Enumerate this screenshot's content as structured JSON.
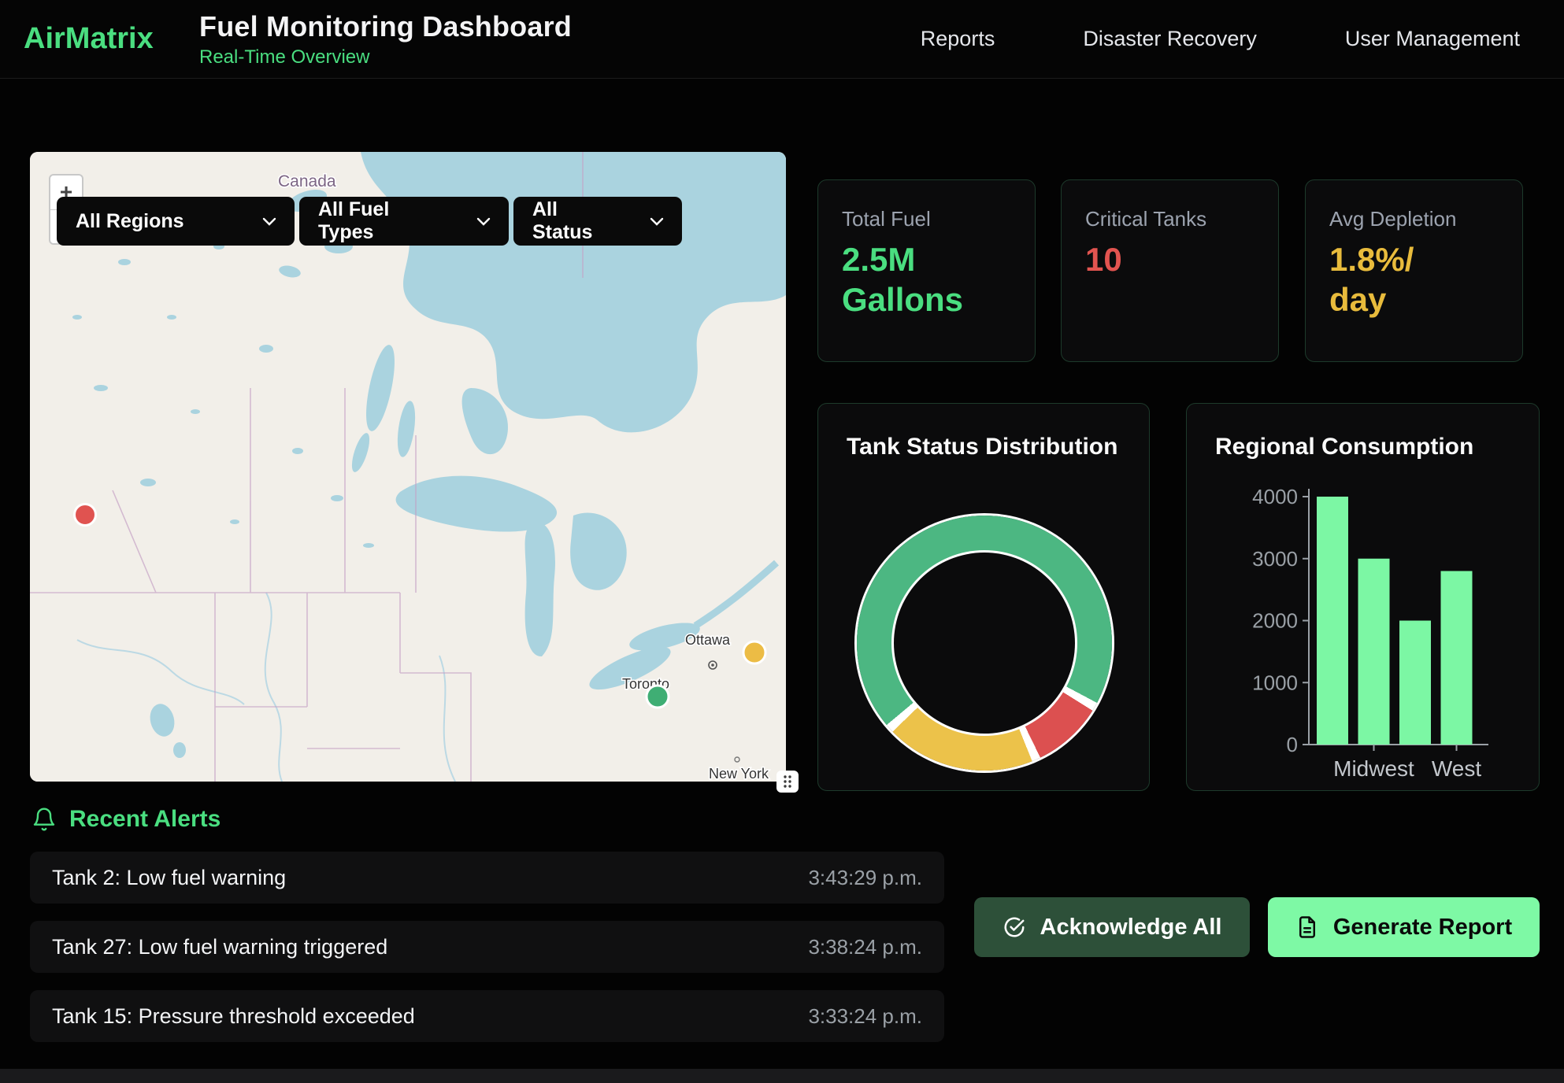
{
  "header": {
    "logo": "AirMatrix",
    "title": "Fuel Monitoring Dashboard",
    "subtitle": "Real-Time Overview",
    "nav": [
      {
        "label": "Reports"
      },
      {
        "label": "Disaster Recovery"
      },
      {
        "label": "User Management"
      }
    ]
  },
  "map": {
    "filters": {
      "region": "All Regions",
      "fuel_type": "All Fuel Types",
      "status": "All Status"
    },
    "zoom_in": "+",
    "zoom_out": "−",
    "labels": {
      "canada": "Canada",
      "ottawa": "Ottawa",
      "toronto": "Toronto",
      "new_york": "New York"
    },
    "markers": [
      {
        "status": "critical",
        "color": "#e05350"
      },
      {
        "status": "warning",
        "color": "#ecbc45"
      },
      {
        "status": "normal",
        "color": "#3fae74"
      }
    ]
  },
  "stats": [
    {
      "label": "Total Fuel",
      "value": "2.5M\nGallons",
      "color": "#4ade80"
    },
    {
      "label": "Critical Tanks",
      "value": "10",
      "color": "#e25450"
    },
    {
      "label": "Avg Depletion",
      "value": "1.8%/\nday",
      "color": "#e8bb3c"
    }
  ],
  "chart_data": [
    {
      "type": "pie",
      "variant": "doughnut",
      "title": "Tank Status Distribution",
      "segments": [
        {
          "label": "green",
          "value": 70,
          "color": "#4cb782"
        },
        {
          "label": "red",
          "value": 10,
          "color": "#dc5050"
        },
        {
          "label": "yellow",
          "value": 20,
          "color": "#ecc24a"
        }
      ],
      "values_estimated": true,
      "rotation_deg": 228,
      "legend": "none"
    },
    {
      "type": "bar",
      "title": "Regional Consumption",
      "categories": [
        "",
        "Midwest",
        "",
        "West"
      ],
      "values": [
        4000,
        3000,
        2000,
        2800
      ],
      "ylim": [
        0,
        4000
      ],
      "yticks": [
        0,
        1000,
        2000,
        3000,
        4000
      ],
      "bar_color": "#7cf7a4",
      "axis_color": "#9aa0a6",
      "tick_label_color": "#9aa0a6",
      "x_label_color": "#c3c7cc",
      "legend": "none",
      "grid": false
    }
  ],
  "alerts": {
    "heading": "Recent Alerts",
    "items": [
      {
        "message": "Tank 2: Low fuel warning",
        "time": "3:43:29 p.m."
      },
      {
        "message": "Tank 27: Low fuel warning triggered",
        "time": "3:38:24 p.m."
      },
      {
        "message": "Tank 15: Pressure threshold exceeded",
        "time": "3:33:24 p.m."
      }
    ]
  },
  "actions": {
    "acknowledge_all": "Acknowledge All",
    "generate_report": "Generate Report"
  }
}
